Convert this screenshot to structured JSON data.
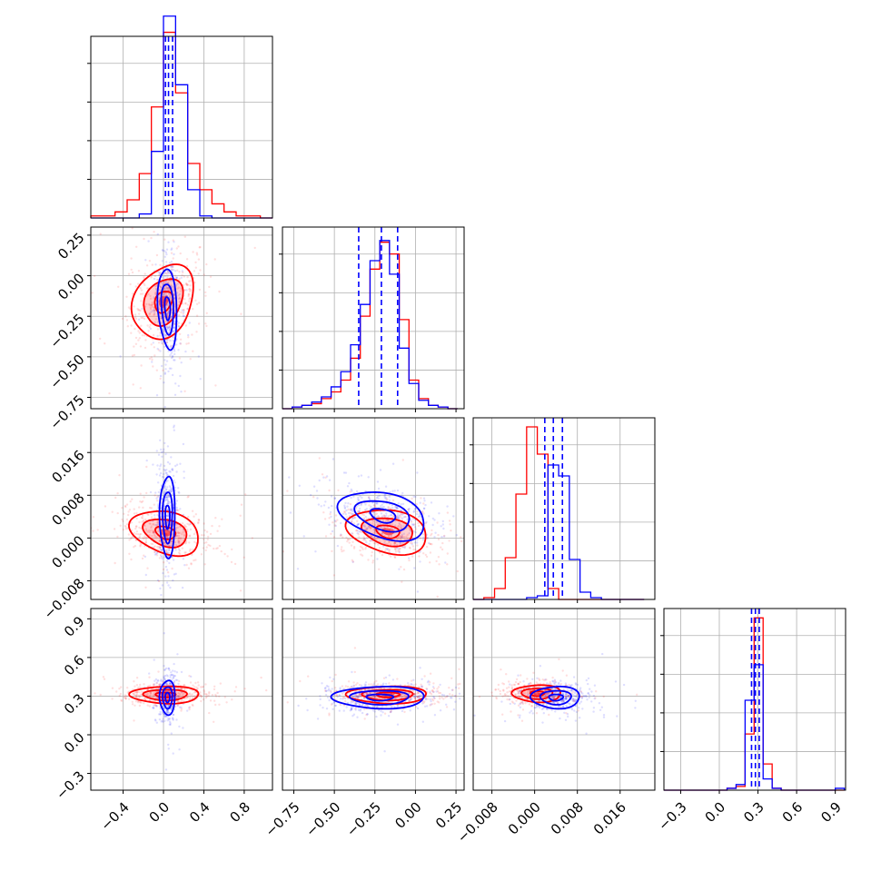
{
  "chart_data": {
    "type": "corner",
    "title": "",
    "n_params": 4,
    "series": [
      {
        "color": "#0000ff",
        "style": "blue samples, histograms and 2D density contours"
      },
      {
        "color": "#ff0000",
        "style": "red samples, histograms and 2D density contours (filled inner levels)"
      }
    ],
    "parameters": [
      {
        "range": [
          -0.72,
          1.08
        ],
        "ticks": [
          -0.4,
          0.0,
          0.4,
          0.8
        ],
        "tick_labels": [
          "−0.4",
          "0.0",
          "0.4",
          "0.8"
        ],
        "bins": [
          -0.72,
          -0.6,
          -0.48,
          -0.36,
          -0.24,
          -0.12,
          0.0,
          0.12,
          0.24,
          0.36,
          0.48,
          0.6,
          0.72,
          0.84,
          0.96,
          1.08
        ],
        "hist_blue": [
          0,
          0,
          0,
          0,
          0.02,
          0.33,
          1.0,
          0.66,
          0.14,
          0.01,
          0,
          0,
          0,
          0,
          0
        ],
        "hist_red": [
          0.01,
          0.01,
          0.03,
          0.09,
          0.22,
          0.55,
          0.92,
          0.62,
          0.27,
          0.14,
          0.07,
          0.03,
          0.01,
          0.01,
          0
        ],
        "quantiles": [
          0.02,
          0.05,
          0.09
        ],
        "hist_ylim": [
          0,
          0.9
        ]
      },
      {
        "range": [
          -0.82,
          0.3
        ],
        "ticks": [
          -0.75,
          -0.5,
          -0.25,
          0.0,
          0.25
        ],
        "tick_labels": [
          "−0.75",
          "−0.50",
          "−0.25",
          "0.00",
          "0.25"
        ],
        "bins": [
          -0.82,
          -0.76,
          -0.7,
          -0.64,
          -0.58,
          -0.52,
          -0.46,
          -0.4,
          -0.34,
          -0.28,
          -0.22,
          -0.16,
          -0.1,
          -0.04,
          0.02,
          0.08,
          0.14,
          0.2,
          0.26
        ],
        "hist_blue": [
          0.0,
          0.01,
          0.02,
          0.04,
          0.07,
          0.13,
          0.22,
          0.38,
          0.62,
          0.88,
          1.0,
          0.8,
          0.36,
          0.15,
          0.05,
          0.02,
          0.01,
          0.0
        ],
        "hist_red": [
          0.0,
          0.01,
          0.02,
          0.03,
          0.06,
          0.1,
          0.17,
          0.3,
          0.55,
          0.83,
          0.99,
          0.92,
          0.53,
          0.17,
          0.06,
          0.02,
          0.01,
          0.0
        ],
        "quantiles": [
          -0.35,
          -0.21,
          -0.11
        ],
        "hist_ylim": [
          0,
          1.08
        ]
      },
      {
        "range": [
          -0.0115,
          0.0225
        ],
        "ticks": [
          -0.008,
          0.0,
          0.008,
          0.016
        ],
        "tick_labels": [
          "−0.008",
          "0.000",
          "0.008",
          "0.016"
        ],
        "bins": [
          -0.0115,
          -0.0095,
          -0.0075,
          -0.0055,
          -0.0035,
          -0.0015,
          0.0005,
          0.0025,
          0.0045,
          0.0065,
          0.0085,
          0.0105,
          0.0125,
          0.0145,
          0.0165,
          0.0185,
          0.0205
        ],
        "hist_blue": [
          0,
          0,
          0,
          0,
          0,
          0.01,
          0.02,
          0.74,
          0.68,
          0.22,
          0.04,
          0.01,
          0.0,
          0.0,
          0.0,
          0.0
        ],
        "hist_red": [
          0.0,
          0.01,
          0.06,
          0.23,
          0.58,
          0.95,
          0.8,
          0.06,
          0.0,
          0.0,
          0.0,
          0.0,
          0.0,
          0.0,
          0.0,
          0.0
        ],
        "quantiles": [
          0.0019,
          0.0035,
          0.0052
        ],
        "hist_ylim": [
          0,
          1.0
        ]
      },
      {
        "range": [
          -0.43,
          0.98
        ],
        "ticks": [
          -0.3,
          0.0,
          0.3,
          0.6,
          0.9
        ],
        "tick_labels": [
          "−0.3",
          "0.0",
          "0.3",
          "0.6",
          "0.9"
        ],
        "bins": [
          -0.43,
          -0.36,
          -0.29,
          -0.22,
          -0.15,
          -0.08,
          -0.01,
          0.06,
          0.13,
          0.2,
          0.27,
          0.34,
          0.41,
          0.48,
          0.55,
          0.62,
          0.69,
          0.76,
          0.83,
          0.9,
          0.97
        ],
        "hist_blue": [
          0,
          0,
          0,
          0,
          0,
          0,
          0,
          0.01,
          0.03,
          0.48,
          0.67,
          0.06,
          0.01,
          0.0,
          0.0,
          0.0,
          0.0,
          0.0,
          0.0,
          0.01
        ],
        "hist_red": [
          0,
          0,
          0,
          0,
          0,
          0,
          0.0,
          0.01,
          0.02,
          0.3,
          0.92,
          0.14,
          0.01,
          0.0,
          0.0,
          0.0,
          0.0,
          0.0,
          0.0,
          0.0
        ],
        "quantiles": [
          0.25,
          0.28,
          0.31
        ],
        "hist_ylim": [
          0,
          0.97
        ]
      }
    ],
    "joint": [
      {
        "row": 1,
        "col": 0,
        "blue": {
          "center": [
            0.04,
            -0.2
          ],
          "sd": [
            0.05,
            0.13
          ],
          "rho": -0.2
        },
        "red": {
          "center": [
            0.0,
            -0.16
          ],
          "sd": [
            0.16,
            0.12
          ],
          "rho": 0.25
        }
      },
      {
        "row": 2,
        "col": 0,
        "blue": {
          "center": [
            0.04,
            0.004
          ],
          "sd": [
            0.04,
            0.004
          ],
          "rho": 0.0
        },
        "red": {
          "center": [
            0.02,
            0.001
          ],
          "sd": [
            0.18,
            0.0022
          ],
          "rho": -0.3
        }
      },
      {
        "row": 2,
        "col": 1,
        "blue": {
          "center": [
            -0.2,
            0.0042
          ],
          "sd": [
            0.14,
            0.0024
          ],
          "rho": -0.35
        },
        "red": {
          "center": [
            -0.17,
            0.0012
          ],
          "sd": [
            0.13,
            0.0022
          ],
          "rho": -0.25
        }
      },
      {
        "row": 3,
        "col": 0,
        "blue": {
          "center": [
            0.04,
            0.29
          ],
          "sd": [
            0.04,
            0.07
          ],
          "rho": 0.0
        },
        "red": {
          "center": [
            0.02,
            0.31
          ],
          "sd": [
            0.18,
            0.035
          ],
          "rho": 0.0
        }
      },
      {
        "row": 3,
        "col": 1,
        "blue": {
          "center": [
            -0.22,
            0.29
          ],
          "sd": [
            0.15,
            0.045
          ],
          "rho": 0.0
        },
        "red": {
          "center": [
            -0.17,
            0.31
          ],
          "sd": [
            0.13,
            0.035
          ],
          "rho": 0.0
        }
      },
      {
        "row": 3,
        "col": 2,
        "blue": {
          "center": [
            0.004,
            0.29
          ],
          "sd": [
            0.0024,
            0.045
          ],
          "rho": 0.0
        },
        "red": {
          "center": [
            0.0005,
            0.32
          ],
          "sd": [
            0.0024,
            0.035
          ],
          "rho": 0.0
        }
      }
    ],
    "contour_levels_sigma": [
      0.55,
      1.2,
      1.9
    ],
    "grid": true,
    "legend": "none"
  }
}
